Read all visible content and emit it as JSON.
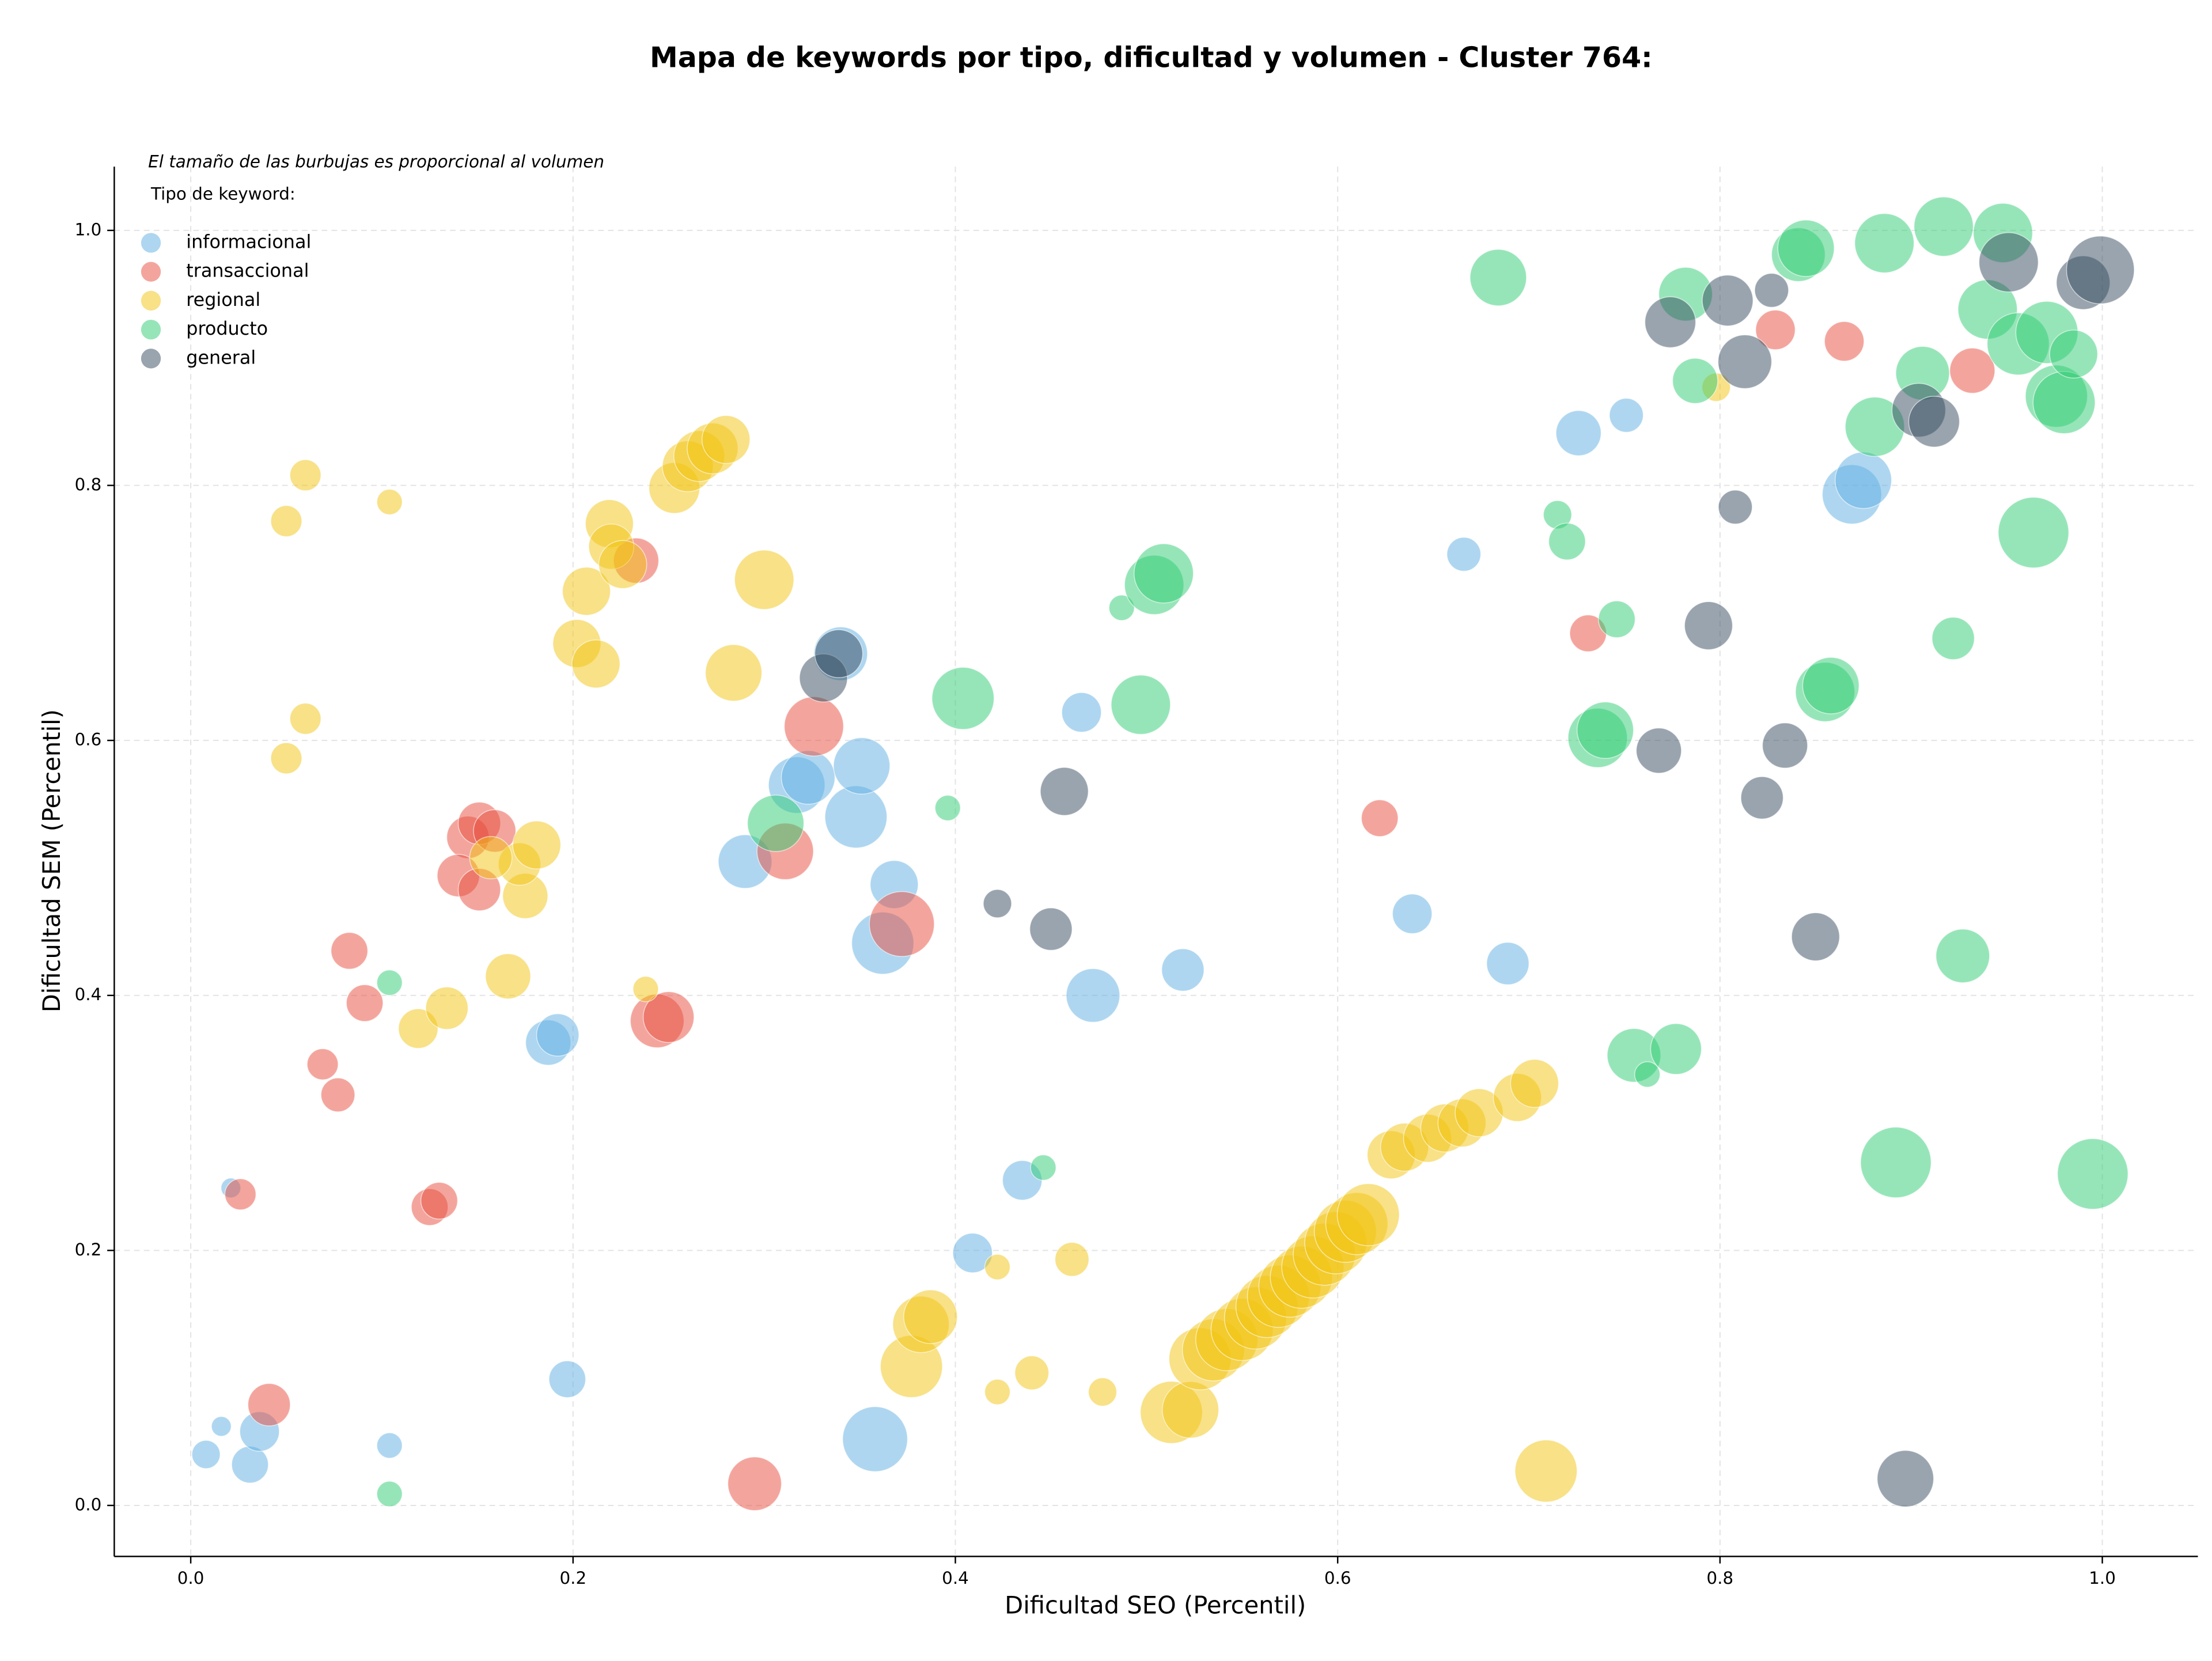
{
  "chart_data": {
    "type": "scatter",
    "title": "Mapa de keywords por tipo, dificultad y volumen - Cluster 764:",
    "annotation": "El tamaño de las burbujas es proporcional al volumen",
    "legend_title": "Tipo de keyword:",
    "legend_position": "upper left",
    "x_label": "Dificultad SEO (Percentil)",
    "y_label": "Dificultad SEM (Percentil)",
    "xlim": [
      -0.04,
      1.05
    ],
    "ylim": [
      -0.04,
      1.05
    ],
    "xticks": [
      {
        "value": 0,
        "label": "0.0"
      },
      0.2,
      0.4,
      0.6,
      0.8,
      {
        "value": 1,
        "label": "1.0"
      }
    ],
    "yticks": [
      {
        "value": 0,
        "label": "0.0"
      },
      0.2,
      0.4,
      0.6,
      0.8,
      {
        "value": 1,
        "label": "1.0"
      }
    ],
    "grid": true,
    "series": [
      {
        "name": "informacional",
        "color": "#5dade2",
        "x": [
          0.008,
          0.016,
          0.021,
          0.031,
          0.036,
          0.104,
          0.187,
          0.192,
          0.197,
          0.29,
          0.317,
          0.323,
          0.34,
          0.348,
          0.351,
          0.362,
          0.358,
          0.368,
          0.409,
          0.435,
          0.466,
          0.472,
          0.519,
          0.639,
          0.666,
          0.689,
          0.726,
          0.751,
          0.869,
          0.875
        ],
        "values": [
          0.04,
          0.062,
          0.249,
          0.032,
          0.058,
          0.047,
          0.363,
          0.369,
          0.099,
          0.505,
          0.565,
          0.571,
          0.668,
          0.54,
          0.58,
          0.441,
          0.052,
          0.487,
          0.198,
          0.255,
          0.622,
          0.4,
          0.42,
          0.464,
          0.746,
          0.425,
          0.841,
          0.855,
          0.793,
          0.804
        ],
        "sizes": [
          100,
          49,
          49,
          169,
          196,
          81,
          256,
          225,
          169,
          361,
          400,
          361,
          361,
          484,
          400,
          484,
          529,
          289,
          196,
          196,
          196,
          361,
          225,
          196,
          144,
          225,
          256,
          144,
          441,
          400
        ]
      },
      {
        "name": "transaccional",
        "color": "#e74c3c",
        "x": [
          0.026,
          0.041,
          0.069,
          0.077,
          0.083,
          0.091,
          0.125,
          0.13,
          0.145,
          0.151,
          0.159,
          0.14,
          0.151,
          0.233,
          0.244,
          0.25,
          0.295,
          0.311,
          0.326,
          0.372,
          0.622,
          0.731,
          0.829,
          0.865,
          0.932
        ],
        "values": [
          0.244,
          0.079,
          0.346,
          0.322,
          0.435,
          0.394,
          0.234,
          0.239,
          0.524,
          0.535,
          0.529,
          0.494,
          0.483,
          0.741,
          0.38,
          0.383,
          0.017,
          0.513,
          0.611,
          0.456,
          0.539,
          0.684,
          0.922,
          0.913,
          0.89
        ],
        "sizes": [
          121,
          225,
          121,
          144,
          169,
          169,
          169,
          169,
          225,
          225,
          225,
          225,
          225,
          256,
          361,
          324,
          361,
          400,
          441,
          529,
          169,
          169,
          196,
          196,
          256
        ]
      },
      {
        "name": "regional",
        "color": "#f1c40f",
        "x": [
          0.06,
          0.05,
          0.104,
          0.06,
          0.05,
          0.119,
          0.134,
          0.166,
          0.175,
          0.172,
          0.157,
          0.181,
          0.238,
          0.202,
          0.212,
          0.207,
          0.219,
          0.22,
          0.226,
          0.253,
          0.26,
          0.266,
          0.273,
          0.28,
          0.3,
          0.284,
          0.377,
          0.382,
          0.387,
          0.422,
          0.422,
          0.44,
          0.461,
          0.477,
          0.709,
          0.798,
          0.513,
          0.523,
          0.528,
          0.535,
          0.542,
          0.55,
          0.557,
          0.563,
          0.569,
          0.575,
          0.581,
          0.587,
          0.593,
          0.599,
          0.604,
          0.61,
          0.616,
          0.628,
          0.635,
          0.647,
          0.656,
          0.665,
          0.674,
          0.694,
          0.703
        ],
        "values": [
          0.808,
          0.772,
          0.787,
          0.617,
          0.586,
          0.374,
          0.39,
          0.415,
          0.478,
          0.503,
          0.508,
          0.518,
          0.405,
          0.676,
          0.66,
          0.717,
          0.77,
          0.752,
          0.738,
          0.798,
          0.815,
          0.823,
          0.829,
          0.836,
          0.726,
          0.653,
          0.109,
          0.142,
          0.148,
          0.187,
          0.089,
          0.104,
          0.193,
          0.089,
          0.027,
          0.877,
          0.073,
          0.075,
          0.115,
          0.122,
          0.13,
          0.138,
          0.147,
          0.156,
          0.164,
          0.172,
          0.179,
          0.187,
          0.197,
          0.206,
          0.215,
          0.221,
          0.228,
          0.275,
          0.281,
          0.288,
          0.296,
          0.3,
          0.308,
          0.32,
          0.331
        ],
        "sizes": [
          121,
          121,
          81,
          121,
          121,
          196,
          225,
          256,
          256,
          225,
          225,
          289,
          81,
          289,
          289,
          289,
          289,
          256,
          289,
          324,
          324,
          324,
          324,
          289,
          441,
          400,
          484,
          400,
          361,
          81,
          81,
          144,
          144,
          100,
          484,
          100,
          484,
          400,
          484,
          484,
          484,
          484,
          484,
          484,
          484,
          484,
          484,
          484,
          484,
          484,
          484,
          484,
          484,
          289,
          289,
          289,
          289,
          289,
          289,
          289,
          289
        ]
      },
      {
        "name": "producto",
        "color": "#2ecc71",
        "x": [
          0.104,
          0.104,
          0.306,
          0.396,
          0.404,
          0.446,
          0.487,
          0.497,
          0.504,
          0.509,
          0.684,
          0.715,
          0.72,
          0.746,
          0.736,
          0.74,
          0.755,
          0.762,
          0.777,
          0.782,
          0.787,
          0.841,
          0.845,
          0.855,
          0.858,
          0.886,
          0.881,
          0.892,
          0.906,
          0.922,
          0.917,
          0.927,
          0.94,
          0.948,
          0.956,
          0.964,
          0.971,
          0.976,
          0.98,
          0.985,
          0.995
        ],
        "values": [
          0.41,
          0.009,
          0.535,
          0.547,
          0.633,
          0.265,
          0.704,
          0.628,
          0.722,
          0.731,
          0.963,
          0.777,
          0.756,
          0.695,
          0.602,
          0.608,
          0.353,
          0.338,
          0.358,
          0.95,
          0.882,
          0.981,
          0.986,
          0.638,
          0.643,
          0.99,
          0.846,
          0.269,
          0.888,
          0.68,
          1.003,
          0.431,
          0.938,
          0.998,
          0.911,
          0.763,
          0.92,
          0.87,
          0.865,
          0.903,
          0.26
        ],
        "sizes": [
          81,
          81,
          400,
          81,
          484,
          81,
          81,
          441,
          441,
          441,
          400,
          100,
          169,
          169,
          441,
          400,
          361,
          81,
          324,
          361,
          256,
          361,
          400,
          441,
          400,
          441,
          441,
          625,
          361,
          225,
          441,
          361,
          441,
          441,
          484,
          625,
          484,
          484,
          484,
          289,
          625
        ]
      },
      {
        "name": "general",
        "color": "#34495e",
        "x": [
          0.331,
          0.339,
          0.422,
          0.45,
          0.457,
          0.768,
          0.774,
          0.794,
          0.804,
          0.808,
          0.813,
          0.822,
          0.827,
          0.834,
          0.85,
          0.897,
          0.904,
          0.912,
          0.951,
          0.99,
          0.999
        ],
        "values": [
          0.649,
          0.668,
          0.472,
          0.452,
          0.56,
          0.592,
          0.928,
          0.69,
          0.945,
          0.783,
          0.897,
          0.555,
          0.953,
          0.596,
          0.446,
          0.021,
          0.859,
          0.85,
          0.975,
          0.959,
          0.969
        ],
        "sizes": [
          289,
          289,
          100,
          225,
          289,
          256,
          324,
          289,
          324,
          144,
          361,
          225,
          144,
          256,
          289,
          400,
          361,
          324,
          441,
          361,
          576
        ]
      }
    ]
  }
}
